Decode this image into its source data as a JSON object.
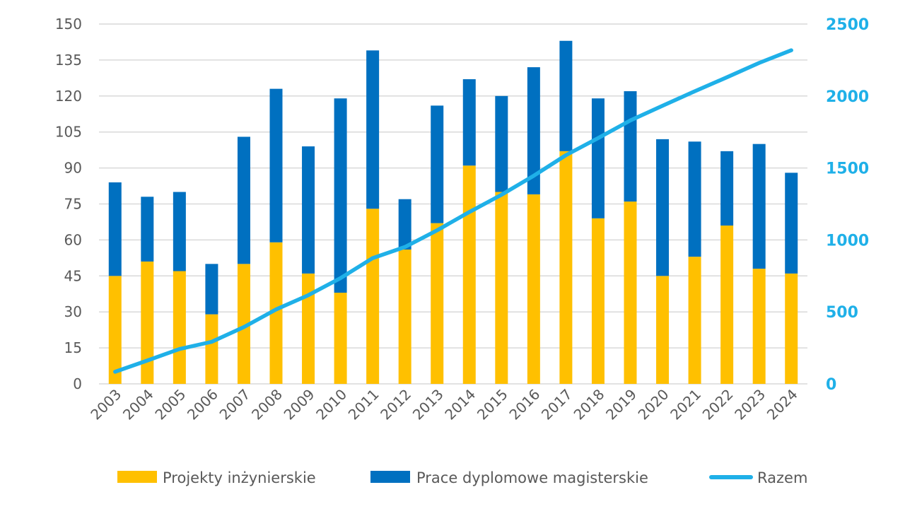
{
  "chart_data": {
    "type": "bar",
    "stacked": true,
    "categories": [
      "2003",
      "2004",
      "2005",
      "2006",
      "2007",
      "2008",
      "2009",
      "2010",
      "2011",
      "2012",
      "2013",
      "2014",
      "2015",
      "2016",
      "2017",
      "2018",
      "2019",
      "2020",
      "2021",
      "2022",
      "2023",
      "2024"
    ],
    "series": [
      {
        "name": "Projekty inżynierskie",
        "type": "bar",
        "axis": "left",
        "color": "#ffc000",
        "values": [
          45,
          51,
          47,
          29,
          50,
          59,
          46,
          38,
          73,
          56,
          67,
          91,
          80,
          79,
          97,
          69,
          76,
          45,
          53,
          66,
          48,
          46
        ]
      },
      {
        "name": "Prace dyplomowe magisterskie",
        "type": "bar",
        "axis": "left",
        "color": "#0070c0",
        "values": [
          39,
          27,
          33,
          21,
          53,
          64,
          53,
          81,
          66,
          21,
          49,
          36,
          40,
          53,
          46,
          50,
          46,
          57,
          48,
          31,
          52,
          42
        ]
      },
      {
        "name": "Razem",
        "type": "line",
        "axis": "right",
        "color": "#1fb0e8",
        "values": [
          84,
          162,
          242,
          292,
          395,
          517,
          616,
          735,
          874,
          951,
          1067,
          1194,
          1314,
          1446,
          1589,
          1708,
          1830,
          1932,
          2033,
          2130,
          2230,
          2318
        ]
      }
    ],
    "left_axis": {
      "min": 0,
      "max": 150,
      "ticks": [
        "0",
        "15",
        "30",
        "45",
        "60",
        "75",
        "90",
        "105",
        "120",
        "135",
        "150"
      ]
    },
    "right_axis": {
      "min": 0,
      "max": 2500,
      "ticks": [
        "0",
        "500",
        "1000",
        "1500",
        "2000",
        "2500"
      ]
    },
    "grid": "horizontal",
    "legend_position": "bottom"
  }
}
